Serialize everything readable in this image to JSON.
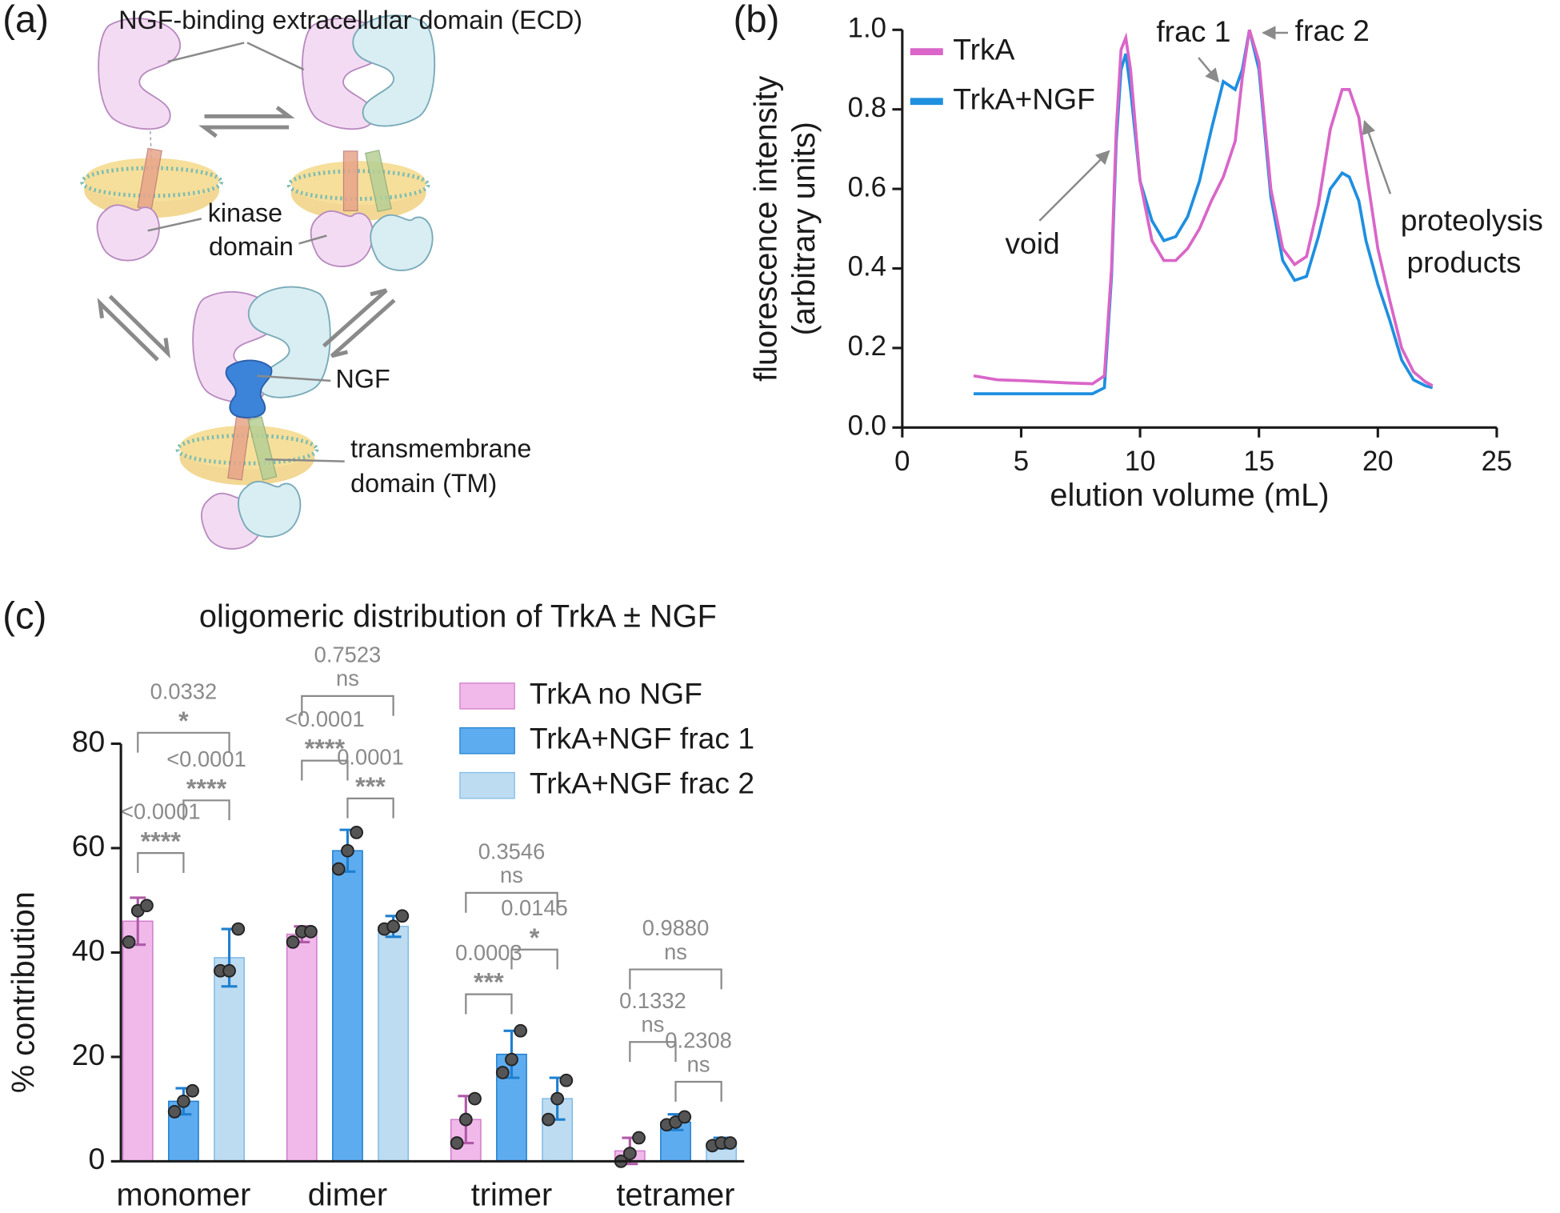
{
  "panel_labels": [
    "(a)",
    "(b)",
    "(c)"
  ],
  "diagram": {
    "labels": [
      "NGF-binding extracellular domain (ECD)",
      "kinase",
      "domain",
      "NGF",
      "transmembrane",
      "domain (TM)"
    ]
  },
  "chart_data": [
    {
      "type": "line",
      "x_label": "elution volume (mL)",
      "y_label": [
        "fluorescence intensity",
        "(arbitrary units)"
      ],
      "x": [
        3,
        4,
        5,
        6,
        7,
        8,
        8.5,
        8.8,
        9,
        9.2,
        9.4,
        9.6,
        10,
        10.5,
        11,
        11.5,
        12,
        12.5,
        13,
        13.5,
        14,
        14.3,
        14.6,
        15,
        15.5,
        16,
        16.5,
        17,
        17.5,
        18,
        18.5,
        18.8,
        19.2,
        19.5,
        20,
        20.5,
        21,
        21.5,
        22,
        22.3
      ],
      "series": [
        {
          "name": "TrkA",
          "color": "#d966c8",
          "values": [
            0.13,
            0.12,
            0.118,
            0.115,
            0.112,
            0.11,
            0.13,
            0.4,
            0.75,
            0.95,
            0.98,
            0.9,
            0.62,
            0.47,
            0.42,
            0.42,
            0.45,
            0.5,
            0.57,
            0.63,
            0.72,
            0.88,
            1.0,
            0.92,
            0.6,
            0.45,
            0.41,
            0.43,
            0.56,
            0.75,
            0.85,
            0.85,
            0.78,
            0.65,
            0.45,
            0.32,
            0.2,
            0.14,
            0.115,
            0.105
          ]
        },
        {
          "name": "TrkA+NGF",
          "color": "#1f8fe0",
          "values": [
            0.085,
            0.085,
            0.085,
            0.085,
            0.085,
            0.085,
            0.1,
            0.38,
            0.72,
            0.9,
            0.94,
            0.85,
            0.62,
            0.52,
            0.47,
            0.48,
            0.53,
            0.62,
            0.75,
            0.87,
            0.85,
            0.9,
            1.0,
            0.9,
            0.58,
            0.42,
            0.37,
            0.38,
            0.48,
            0.6,
            0.64,
            0.63,
            0.57,
            0.47,
            0.36,
            0.27,
            0.17,
            0.12,
            0.105,
            0.1
          ]
        }
      ],
      "xlim": [
        0,
        25
      ],
      "xticks": [
        0,
        5,
        10,
        15,
        20,
        25
      ],
      "ylim": [
        0,
        1
      ],
      "yticks": [
        {
          "value": 0,
          "label": "0.0"
        },
        0.2,
        0.4,
        0.6,
        0.8,
        {
          "value": 1,
          "label": "1.0"
        }
      ],
      "legend": "upper left",
      "annotations": [
        "frac 1",
        "frac 2",
        "void",
        "proteolysis",
        "products"
      ]
    },
    {
      "type": "bar",
      "title": "oligomeric distribution of TrkA ± NGF",
      "y_label": "% contribution",
      "categories": [
        "monomer",
        "dimer",
        "trimer",
        "tetramer"
      ],
      "series": [
        {
          "name": "TrkA no NGF",
          "color": "#f0b9ea",
          "edge": "#d07ccc",
          "values": [
            46,
            43.5,
            8,
            2
          ],
          "errors": [
            4.5,
            1.5,
            4.5,
            2.5
          ],
          "points": [
            [
              42,
              48,
              49
            ],
            [
              42,
              44,
              44
            ],
            [
              3.5,
              8,
              12
            ],
            [
              0,
              1.5,
              4.5
            ]
          ]
        },
        {
          "name": "TrkA+NGF frac 1",
          "color": "#5eacf0",
          "edge": "#1f7fd0",
          "values": [
            11.5,
            59.5,
            20.5,
            7.5
          ],
          "errors": [
            2.5,
            4,
            4.5,
            1.5
          ],
          "points": [
            [
              9.5,
              11.5,
              13.5
            ],
            [
              56,
              59.5,
              63
            ],
            [
              17,
              19.5,
              25
            ],
            [
              7,
              7.5,
              8.5
            ]
          ]
        },
        {
          "name": "TrkA+NGF frac 2",
          "color": "#bddcf2",
          "edge": "#7fbbe6",
          "values": [
            39,
            45,
            12,
            3.5
          ],
          "errors": [
            5.5,
            2,
            4,
            1
          ],
          "points": [
            [
              36.5,
              36.5,
              44.5
            ],
            [
              44.5,
              45,
              47
            ],
            [
              8,
              12,
              15.5
            ],
            [
              3,
              3.5,
              3.5
            ]
          ]
        }
      ],
      "ylim": [
        0,
        80
      ],
      "yticks": [
        0,
        20,
        40,
        60,
        80
      ],
      "legend": "upper right",
      "comparisons": [
        {
          "category": 0,
          "pair": [
            0,
            1
          ],
          "p": "<0.0001",
          "sig": "****"
        },
        {
          "category": 0,
          "pair": [
            1,
            2
          ],
          "p": "<0.0001",
          "sig": "****"
        },
        {
          "category": 0,
          "pair": [
            0,
            2
          ],
          "p": "0.0332",
          "sig": "*"
        },
        {
          "category": 1,
          "pair": [
            0,
            1
          ],
          "p": "<0.0001",
          "sig": "****"
        },
        {
          "category": 1,
          "pair": [
            1,
            2
          ],
          "p": "0.0001",
          "sig": "***"
        },
        {
          "category": 1,
          "pair": [
            0,
            2
          ],
          "p": "0.7523",
          "sig": "ns"
        },
        {
          "category": 2,
          "pair": [
            0,
            1
          ],
          "p": "0.0003",
          "sig": "***"
        },
        {
          "category": 2,
          "pair": [
            1,
            2
          ],
          "p": "0.0145",
          "sig": "*"
        },
        {
          "category": 2,
          "pair": [
            0,
            2
          ],
          "p": "0.3546",
          "sig": "ns"
        },
        {
          "category": 3,
          "pair": [
            0,
            1
          ],
          "p": "0.1332",
          "sig": "ns"
        },
        {
          "category": 3,
          "pair": [
            1,
            2
          ],
          "p": "0.2308",
          "sig": "ns"
        },
        {
          "category": 3,
          "pair": [
            0,
            2
          ],
          "p": "0.9880",
          "sig": "ns"
        }
      ]
    }
  ]
}
